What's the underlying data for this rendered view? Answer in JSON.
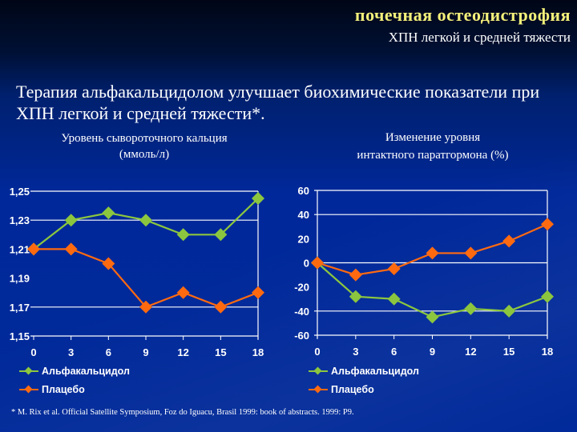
{
  "header": {
    "title": "почечная  остеодистрофия",
    "subtitle": "ХПН легкой и средней тяжести"
  },
  "headline": "Терапия альфакальцидолом улучшает биохимические показатели при ХПН легкой и средней тяжести*.",
  "colors": {
    "alfacalcidol": "#8cc63f",
    "placebo": "#ff6a10",
    "grid": "#ffffff",
    "title_accent": "#f4f07a"
  },
  "chart_data": [
    {
      "type": "line",
      "title": "Уровень сывороточного кальция (ммоль/л)",
      "title_line1": "Уровень сывороточного кальция",
      "title_line2": "(ммоль/л)",
      "xlabel": "",
      "ylabel": "",
      "x": [
        0,
        3,
        6,
        9,
        12,
        15,
        18
      ],
      "x_ticks": [
        "0",
        "3",
        "6",
        "9",
        "12",
        "15",
        "18"
      ],
      "y_ticks": [
        "1,25",
        "1,23",
        "1,21",
        "1,19",
        "1,17",
        "1,15"
      ],
      "ylim": [
        1.15,
        1.25
      ],
      "grid": true,
      "legend_position": "bottom-left",
      "series": [
        {
          "name": "Альфакальцидол",
          "color": "#8cc63f",
          "values": [
            1.21,
            1.23,
            1.235,
            1.23,
            1.22,
            1.22,
            1.245
          ]
        },
        {
          "name": "Плацебо",
          "color": "#ff6a10",
          "values": [
            1.21,
            1.21,
            1.2,
            1.17,
            1.18,
            1.17,
            1.18
          ]
        }
      ]
    },
    {
      "type": "line",
      "title": "Изменение уровня интактного паратгормона (%)",
      "title_line1": "Изменение уровня",
      "title_line2": "интактного паратгормона (%)",
      "xlabel": "",
      "ylabel": "",
      "x": [
        0,
        3,
        6,
        9,
        12,
        15,
        18
      ],
      "x_ticks": [
        "0",
        "3",
        "6",
        "9",
        "12",
        "15",
        "18"
      ],
      "y_ticks": [
        "60",
        "40",
        "20",
        "0",
        "-20",
        "-40",
        "-60"
      ],
      "ylim": [
        -60,
        60
      ],
      "grid": true,
      "legend_position": "bottom-left",
      "series": [
        {
          "name": "Альфакальцидол",
          "color": "#8cc63f",
          "values": [
            0,
            -28,
            -30,
            -45,
            -38,
            -40,
            -28
          ]
        },
        {
          "name": "Плацебо",
          "color": "#ff6a10",
          "values": [
            0,
            -10,
            -5,
            8,
            8,
            18,
            32
          ]
        }
      ]
    }
  ],
  "footnote": "* M. Rix  et al.  Official Satellite Symposium, Foz do Iguacu, Brasil 1999: book of abstracts. 1999: P9."
}
